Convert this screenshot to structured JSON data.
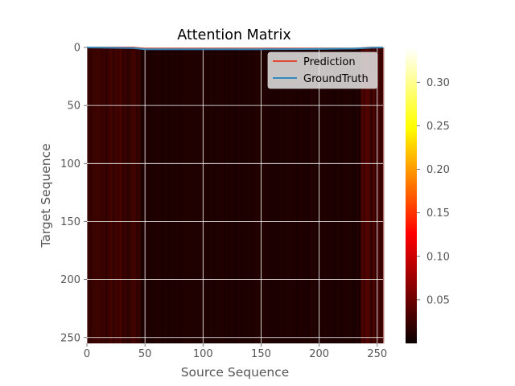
{
  "chart_data": {
    "type": "heatmap",
    "title": "Attention Matrix",
    "xlabel": "Source Sequence",
    "ylabel": "Target Sequence",
    "xlim": [
      0,
      255
    ],
    "ylim": [
      255,
      0
    ],
    "x_ticks": [
      0,
      50,
      100,
      150,
      200,
      250
    ],
    "y_ticks": [
      0,
      50,
      100,
      150,
      200,
      250
    ],
    "grid": true,
    "colormap": "hot",
    "colorbar": {
      "range": [
        0.0,
        0.34
      ],
      "ticks": [
        "0.05",
        "0.10",
        "0.15",
        "0.20",
        "0.25",
        "0.30"
      ]
    },
    "legend": {
      "placement": "top-right",
      "entries": [
        {
          "label": "Prediction",
          "color": "#e24a33"
        },
        {
          "label": "GroundTruth",
          "color": "#348abd"
        }
      ]
    },
    "series": [
      {
        "name": "Prediction",
        "color": "#e24a33",
        "x": [
          0,
          40,
          50,
          100,
          150,
          200,
          230,
          245,
          255
        ],
        "y": [
          0,
          0,
          1,
          1,
          1,
          1,
          1,
          0,
          0
        ]
      },
      {
        "name": "GroundTruth",
        "color": "#348abd",
        "x": [
          0,
          40,
          50,
          100,
          150,
          200,
          230,
          245,
          255
        ],
        "y": [
          0,
          0.5,
          1.5,
          1.5,
          1.5,
          1.3,
          1.0,
          0.3,
          0
        ]
      }
    ]
  },
  "colors": {
    "grid": "#ffffff",
    "tick_text": "#555555",
    "heatmap_base": "#150000"
  }
}
